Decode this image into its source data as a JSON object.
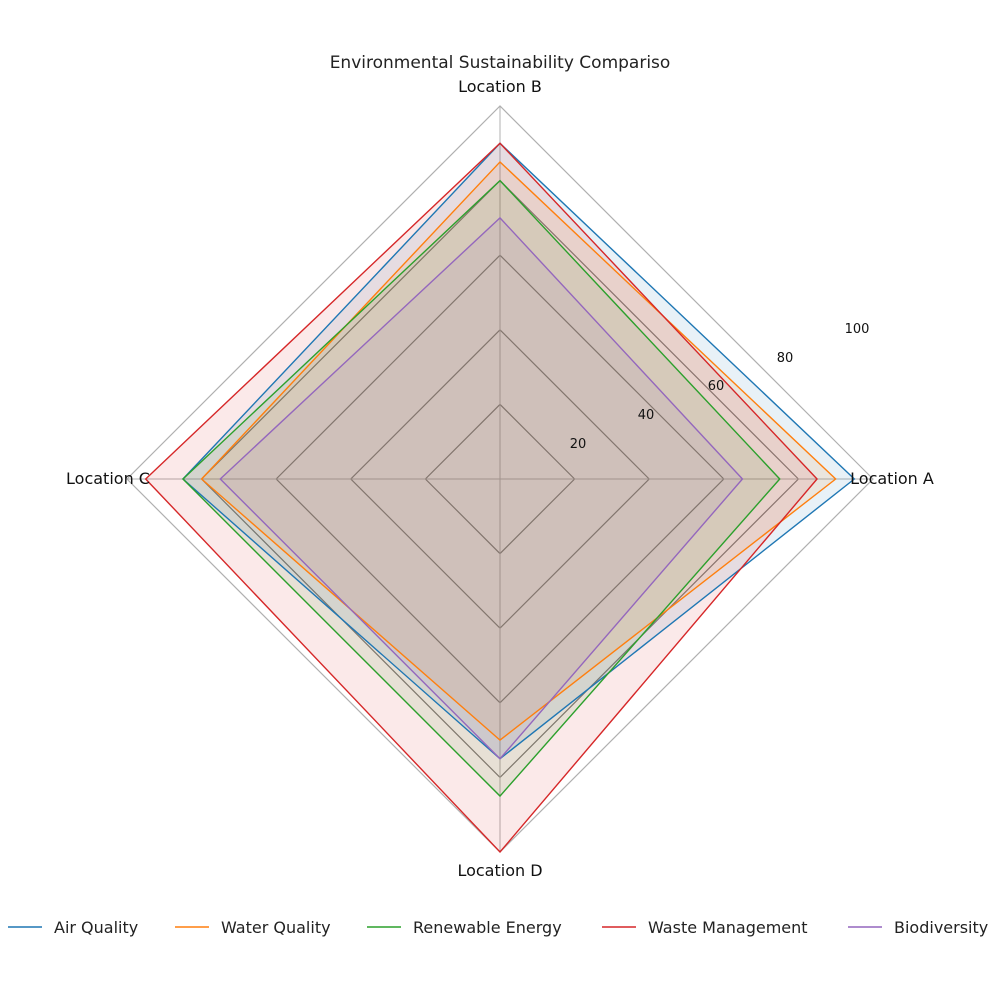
{
  "chart_data": {
    "type": "radar",
    "title": "Environmental Sustainability Compariso",
    "axes": [
      "Location A",
      "Location B",
      "Location C",
      "Location D"
    ],
    "rlim": [
      0,
      100
    ],
    "r_ticks": [
      20,
      40,
      60,
      80,
      100
    ],
    "grid": true,
    "legend_position": "bottom",
    "series": [
      {
        "name": "Air Quality",
        "color": "#1f77b4",
        "values": [
          95,
          90,
          85,
          75
        ]
      },
      {
        "name": "Water Quality",
        "color": "#ff7f0e",
        "values": [
          90,
          85,
          80,
          70
        ]
      },
      {
        "name": "Renewable Energy",
        "color": "#2ca02c",
        "values": [
          75,
          80,
          85,
          85
        ]
      },
      {
        "name": "Waste Management",
        "color": "#d62728",
        "values": [
          85,
          90,
          95,
          100
        ]
      },
      {
        "name": "Biodiversity",
        "color": "#9467bd",
        "values": [
          65,
          70,
          75,
          75
        ]
      }
    ]
  }
}
